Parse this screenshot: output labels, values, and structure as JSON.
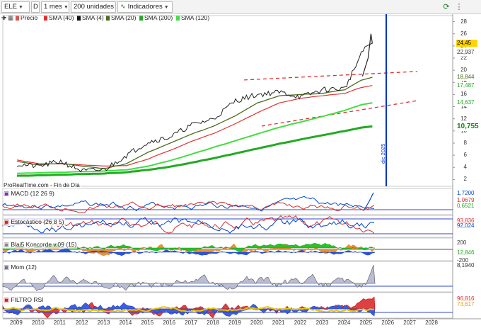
{
  "toolbar": {
    "symbol": "ELE",
    "mode": "D",
    "period": "1 mes",
    "units": "200 unidades",
    "indicators": "Indicadores"
  },
  "legend": [
    {
      "label": "Precio",
      "color": "#d9534f"
    },
    {
      "label": "SMA (40)",
      "color": "#e03030"
    },
    {
      "label": "SMA (4)",
      "color": "#111111"
    },
    {
      "label": "SMA (20)",
      "color": "#4b6b1f"
    },
    {
      "label": "SMA (200)",
      "color": "#22aa22"
    },
    {
      "label": "SMA (120)",
      "color": "#44dd44"
    }
  ],
  "main": {
    "y_ticks": [
      "28",
      "26",
      "24",
      "22",
      "20",
      "18",
      "16",
      "14",
      "12",
      "10",
      "8",
      "6",
      "4",
      "2"
    ],
    "tags": [
      {
        "text": "24,45",
        "bg": "#ffd400",
        "color": "#000000"
      },
      {
        "text": "22,937",
        "bg": "#ffffff",
        "color": "#333333"
      },
      {
        "text": "18,844",
        "bg": "#ffffff",
        "color": "#4b6b1f"
      },
      {
        "text": "17,487",
        "bg": "#ffffff",
        "color": "#22aa22"
      },
      {
        "text": "14,637",
        "bg": "#ffffff",
        "color": "#22aa22"
      },
      {
        "text": "10,755",
        "bg": "#ffffff",
        "color": "#0a8a0a"
      }
    ],
    "source": "ProRealTime.com - Fin de Día",
    "date_marker": "dic 2025"
  },
  "panels": {
    "macd": {
      "title": "MACD (12 26 9)",
      "values": [
        "1,7200",
        "1,0679",
        "0,6521"
      ]
    },
    "stoch": {
      "title": "Estocástico (26 8 5)",
      "values": [
        "93,836",
        "92,024"
      ]
    },
    "koncorde": {
      "title": "Blai5 Koncorde v.09 (15)",
      "values": [
        "200",
        "12,846",
        "-200"
      ]
    },
    "mom": {
      "title": "Mom (12)",
      "values": [
        "8,1940"
      ]
    },
    "rsi": {
      "title": "FILTRO RSI",
      "values": [
        "96,816",
        "73,617"
      ]
    }
  },
  "x_axis": [
    "2009",
    "2010",
    "2011",
    "2012",
    "2013",
    "2014",
    "2015",
    "2016",
    "2017",
    "2018",
    "2019",
    "2020",
    "2021",
    "2022",
    "2023",
    "2024",
    "2025",
    "2026",
    "2027",
    "2028"
  ],
  "chart_data": {
    "type": "line",
    "title": "",
    "xlabel": "",
    "ylabel": "",
    "ylim": [
      1,
      29
    ],
    "x": [
      "2009",
      "2010",
      "2011",
      "2012",
      "2013",
      "2014",
      "2015",
      "2016",
      "2017",
      "2018",
      "2019",
      "2020",
      "2021",
      "2022",
      "2023",
      "2024",
      "2025"
    ],
    "series": [
      {
        "name": "Precio",
        "values": [
          4.5,
          4.2,
          5.0,
          3.4,
          3.6,
          6.0,
          8.2,
          9.0,
          11.0,
          12.0,
          15.0,
          16.0,
          16.4,
          15.6,
          16.8,
          17.0,
          24.45
        ]
      },
      {
        "name": "SMA (20)",
        "values": [
          5.0,
          4.4,
          4.7,
          4.2,
          3.8,
          4.6,
          6.5,
          8.0,
          9.5,
          10.8,
          12.5,
          14.6,
          15.8,
          16.0,
          16.2,
          16.8,
          18.844
        ]
      },
      {
        "name": "SMA (40)",
        "values": [
          5.2,
          4.6,
          4.6,
          4.4,
          4.2,
          4.3,
          5.4,
          6.8,
          8.3,
          9.6,
          11.2,
          13.0,
          14.6,
          15.4,
          15.8,
          16.2,
          17.487
        ]
      },
      {
        "name": "SMA (120)",
        "values": [
          3.0,
          3.1,
          3.2,
          3.3,
          3.4,
          3.6,
          4.2,
          5.1,
          6.2,
          7.3,
          8.4,
          9.5,
          10.6,
          11.5,
          12.4,
          13.4,
          14.637
        ]
      },
      {
        "name": "SMA (200)",
        "values": [
          2.6,
          2.7,
          2.8,
          2.9,
          3.0,
          3.2,
          3.6,
          4.1,
          4.8,
          5.5,
          6.3,
          7.1,
          7.9,
          8.6,
          9.3,
          10.0,
          10.755
        ]
      }
    ],
    "grid": false,
    "legend": "top-left"
  }
}
